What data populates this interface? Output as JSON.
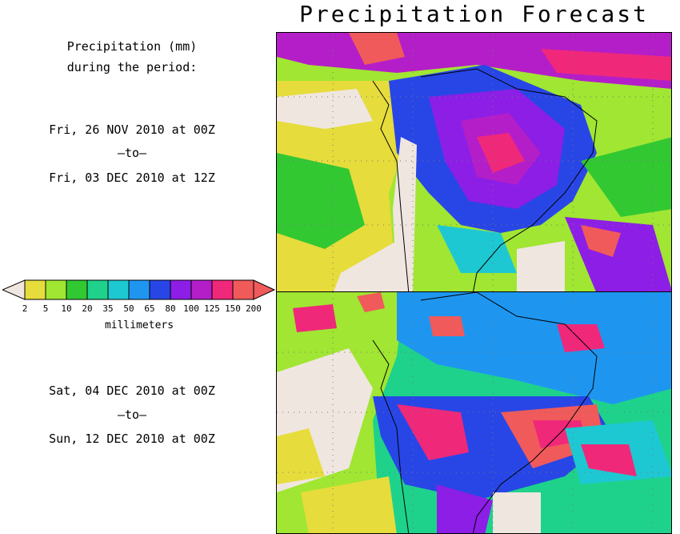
{
  "title": "Precipitation Forecast",
  "info": {
    "line1": "Precipitation (mm)",
    "line2": "during the period:"
  },
  "period1": {
    "start": "Fri, 26 NOV 2010 at 00Z",
    "sep": "–to–",
    "end": "Fri, 03 DEC 2010 at 12Z"
  },
  "period2": {
    "start": "Sat, 04 DEC 2010 at 00Z",
    "sep": "–to–",
    "end": "Sun, 12 DEC 2010 at 00Z"
  },
  "legend": {
    "units": "millimeters",
    "ticks": [
      "2",
      "5",
      "10",
      "20",
      "35",
      "50",
      "65",
      "80",
      "100",
      "125",
      "150",
      "200"
    ],
    "below_color": "#f0e6e0",
    "above_color": "#f05a5a",
    "colors": [
      "#e6dc3c",
      "#a0e632",
      "#32c832",
      "#1ed28c",
      "#1ec8d2",
      "#1e96f0",
      "#2846e6",
      "#8c1ee6",
      "#b41ec8",
      "#f0287a",
      "#f05a5a"
    ]
  }
}
